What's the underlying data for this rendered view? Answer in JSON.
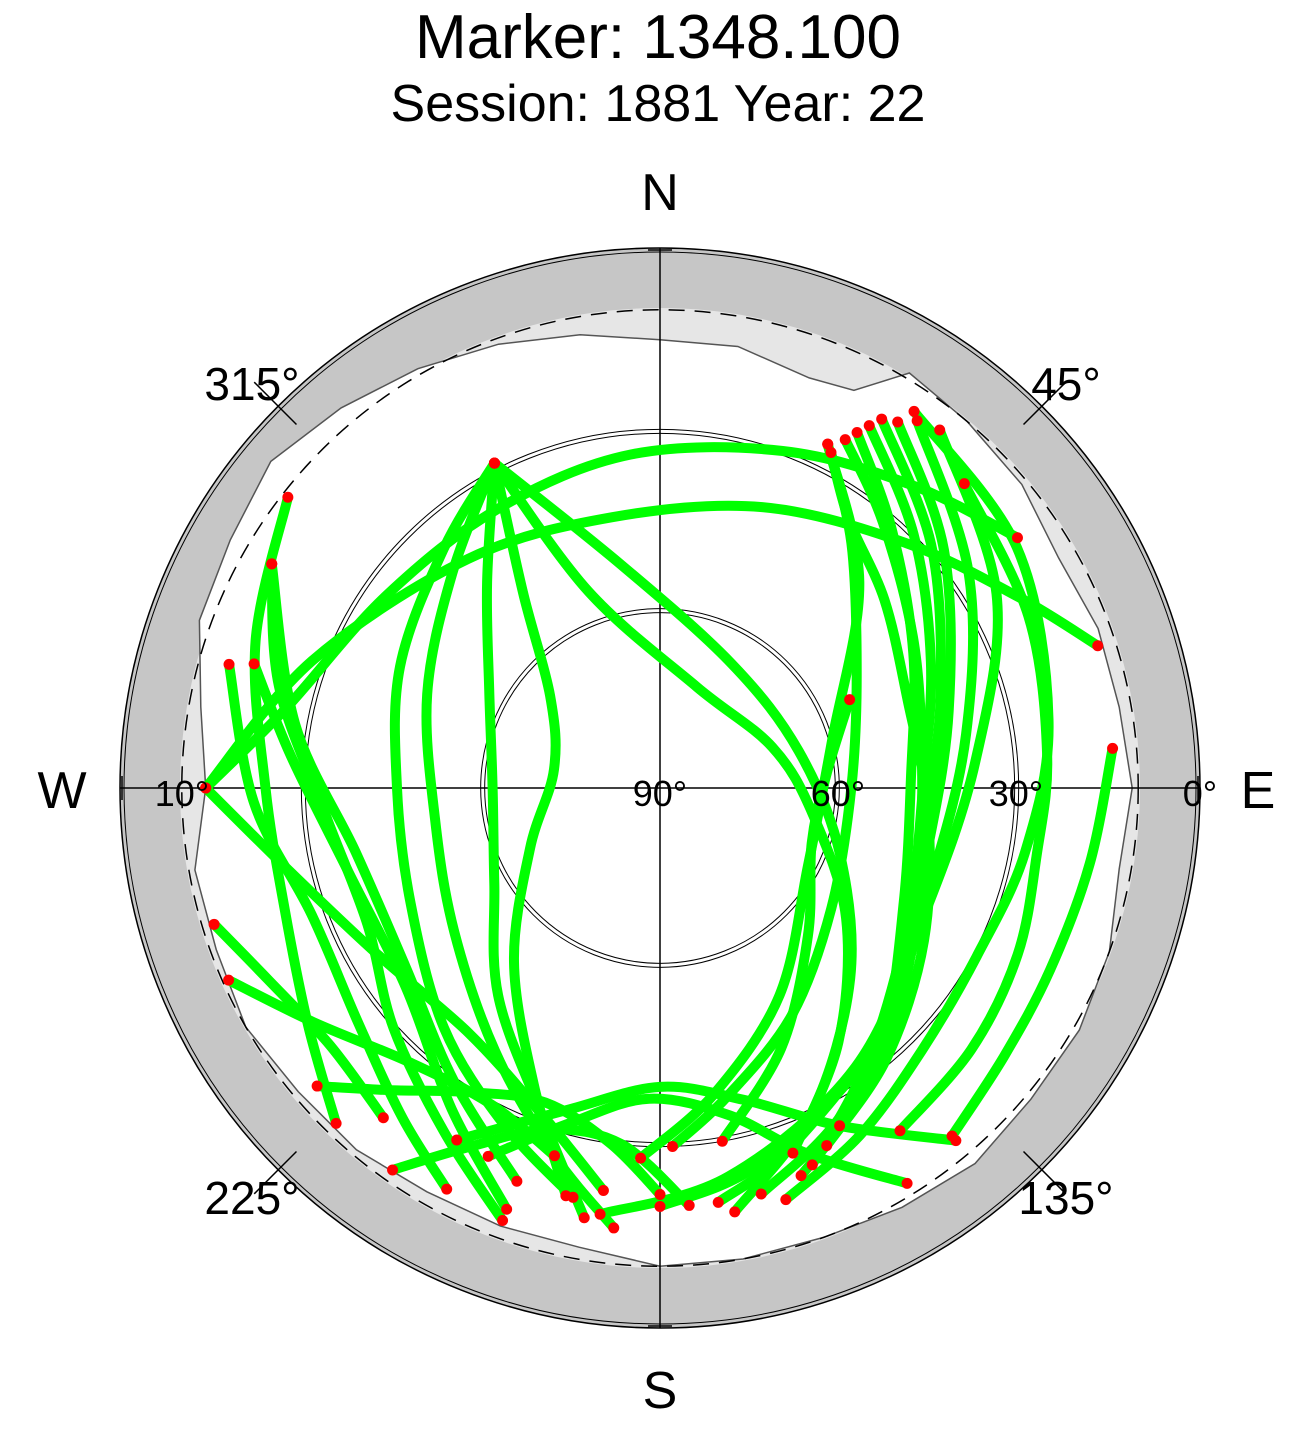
{
  "header": {
    "title": "Marker: 1348.100",
    "subtitle": "Session: 1881 Year: 22"
  },
  "colors": {
    "track": "#00ff00",
    "endpoint": "#ff0000",
    "outer_ring": "#c6c6c6",
    "mask_region": "#e6e6e6",
    "visible_region": "#ffffff"
  },
  "chart_data": {
    "type": "scatter",
    "projection": "polar skyplot (azimuth clockwise from North, elevation radial)",
    "labels": {
      "compass": {
        "N": "N",
        "E": "E",
        "S": "S",
        "W": "W"
      },
      "azimuth_ticks": [
        "45°",
        "135°",
        "225°",
        "315°"
      ],
      "elevation_ticks": [
        "90°",
        "60°",
        "30°",
        "0°",
        "10°"
      ]
    },
    "elevation_range": [
      0,
      90
    ],
    "elevation_mask_deg": 10,
    "elevation_rings_deg": [
      30,
      60
    ],
    "horizon_mask": [
      [
        0,
        15
      ],
      [
        10,
        15
      ],
      [
        20,
        17
      ],
      [
        26,
        16
      ],
      [
        31,
        9
      ],
      [
        40,
        10
      ],
      [
        50,
        11
      ],
      [
        60,
        13
      ],
      [
        70,
        12
      ],
      [
        80,
        12
      ],
      [
        90,
        11
      ],
      [
        100,
        12
      ],
      [
        110,
        10
      ],
      [
        120,
        9
      ],
      [
        130,
        9
      ],
      [
        140,
        8
      ],
      [
        150,
        9
      ],
      [
        160,
        10
      ],
      [
        170,
        10
      ],
      [
        180,
        10
      ],
      [
        190,
        12
      ],
      [
        200,
        12
      ],
      [
        210,
        12
      ],
      [
        220,
        11
      ],
      [
        230,
        11
      ],
      [
        240,
        10
      ],
      [
        250,
        11
      ],
      [
        260,
        11
      ],
      [
        270,
        14
      ],
      [
        280,
        12
      ],
      [
        290,
        8
      ],
      [
        300,
        7
      ],
      [
        310,
        5
      ],
      [
        320,
        7
      ],
      [
        330,
        9
      ],
      [
        340,
        11
      ],
      [
        350,
        13
      ],
      [
        360,
        15
      ]
    ],
    "series": [
      {
        "points": [
          [
            27,
            27
          ],
          [
            35,
            35
          ],
          [
            50,
            41
          ],
          [
            70,
            46
          ],
          [
            95,
            45
          ],
          [
            120,
            39
          ],
          [
            140,
            31
          ],
          [
            155,
            24
          ]
        ]
      },
      {
        "points": [
          [
            28,
            24
          ],
          [
            40,
            32
          ],
          [
            60,
            41
          ],
          [
            85,
            46
          ],
          [
            110,
            44
          ],
          [
            130,
            37
          ],
          [
            148,
            28
          ],
          [
            160,
            21
          ]
        ]
      },
      {
        "points": [
          [
            29,
            22
          ],
          [
            42,
            32
          ],
          [
            62,
            42
          ],
          [
            88,
            48
          ],
          [
            115,
            45
          ],
          [
            138,
            34
          ],
          [
            152,
            26
          ]
        ]
      },
      {
        "points": [
          [
            30,
            20
          ],
          [
            45,
            30
          ],
          [
            65,
            40
          ],
          [
            90,
            46
          ],
          [
            118,
            43
          ],
          [
            142,
            33
          ],
          [
            158,
            22
          ]
        ]
      },
      {
        "points": [
          [
            31,
            18
          ],
          [
            48,
            29
          ],
          [
            70,
            40
          ],
          [
            95,
            45
          ],
          [
            125,
            40
          ],
          [
            150,
            28
          ],
          [
            166,
            20
          ]
        ]
      },
      {
        "points": [
          [
            33,
            17
          ],
          [
            50,
            28
          ],
          [
            75,
            40
          ],
          [
            105,
            44
          ],
          [
            135,
            36
          ],
          [
            160,
            26
          ],
          [
            172,
            20
          ]
        ]
      },
      {
        "points": [
          [
            35,
            15
          ],
          [
            55,
            27
          ],
          [
            80,
            38
          ],
          [
            110,
            42
          ],
          [
            140,
            34
          ],
          [
            165,
            25
          ],
          [
            180,
            20
          ]
        ]
      },
      {
        "points": [
          [
            38,
            14
          ],
          [
            60,
            25
          ],
          [
            85,
            37
          ],
          [
            115,
            41
          ],
          [
            145,
            33
          ],
          [
            170,
            24
          ],
          [
            188,
            18
          ]
        ]
      },
      {
        "points": [
          [
            26,
            26
          ],
          [
            38,
            38
          ],
          [
            60,
            52
          ],
          [
            90,
            58
          ],
          [
            125,
            55
          ],
          [
            150,
            46
          ],
          [
            168,
            37
          ],
          [
            178,
            30
          ]
        ]
      },
      {
        "points": [
          [
            26,
            26
          ],
          [
            44,
            42
          ],
          [
            74,
            60
          ],
          [
            118,
            62
          ],
          [
            150,
            50
          ],
          [
            170,
            38
          ],
          [
            183,
            28
          ]
        ]
      },
      {
        "points": [
          [
            34,
            14
          ],
          [
            56,
            18
          ],
          [
            80,
            24
          ],
          [
            100,
            28
          ],
          [
            118,
            30
          ],
          [
            135,
            28
          ],
          [
            150,
            23
          ],
          [
            163,
            18
          ]
        ]
      },
      {
        "points": [
          [
            45,
            18
          ],
          [
            65,
            22
          ],
          [
            85,
            25
          ],
          [
            100,
            26
          ],
          [
            115,
            24
          ],
          [
            130,
            22
          ],
          [
            145,
            20
          ]
        ]
      },
      {
        "points": [
          [
            85,
            14
          ],
          [
            100,
            17
          ],
          [
            115,
            18
          ],
          [
            128,
            17
          ],
          [
            140,
            14
          ]
        ]
      },
      {
        "points": [
          [
            65,
            55
          ],
          [
            85,
            62
          ],
          [
            110,
            63
          ],
          [
            135,
            55
          ],
          [
            155,
            42
          ],
          [
            170,
            30
          ]
        ]
      },
      {
        "points": [
          [
            333,
            29
          ],
          [
            318,
            36
          ],
          [
            295,
            42
          ],
          [
            270,
            46
          ],
          [
            245,
            44
          ],
          [
            222,
            36
          ],
          [
            205,
            28
          ],
          [
            192,
            20
          ]
        ]
      },
      {
        "points": [
          [
            333,
            29
          ],
          [
            316,
            40
          ],
          [
            292,
            48
          ],
          [
            262,
            52
          ],
          [
            235,
            48
          ],
          [
            212,
            38
          ],
          [
            196,
            26
          ],
          [
            186,
            16
          ]
        ]
      },
      {
        "points": [
          [
            333,
            29
          ],
          [
            320,
            45
          ],
          [
            300,
            57
          ],
          [
            270,
            62
          ],
          [
            240,
            58
          ],
          [
            218,
            46
          ],
          [
            200,
            32
          ],
          [
            190,
            17
          ]
        ]
      },
      {
        "points": [
          [
            333,
            29
          ],
          [
            325,
            50
          ],
          [
            310,
            66
          ],
          [
            280,
            72
          ],
          [
            245,
            66
          ],
          [
            220,
            52
          ],
          [
            203,
            36
          ],
          [
            193,
            20
          ]
        ]
      },
      {
        "points": [
          [
            333,
            29
          ],
          [
            340,
            55
          ],
          [
            20,
            72
          ],
          [
            70,
            70
          ],
          [
            100,
            64
          ],
          [
            125,
            52
          ],
          [
            145,
            38
          ],
          [
            160,
            25
          ]
        ]
      },
      {
        "points": [
          [
            333,
            29
          ],
          [
            350,
            52
          ],
          [
            30,
            66
          ],
          [
            75,
            66
          ],
          [
            110,
            58
          ],
          [
            135,
            45
          ],
          [
            155,
            30
          ],
          [
            170,
            18
          ]
        ]
      },
      {
        "points": [
          [
            300,
            15
          ],
          [
            285,
            24
          ],
          [
            265,
            34
          ],
          [
            245,
            36
          ],
          [
            228,
            30
          ],
          [
            212,
            22
          ],
          [
            200,
            13
          ]
        ]
      },
      {
        "points": [
          [
            300,
            15
          ],
          [
            280,
            28
          ],
          [
            258,
            38
          ],
          [
            235,
            38
          ],
          [
            215,
            30
          ],
          [
            200,
            20
          ]
        ]
      },
      {
        "points": [
          [
            287,
            19
          ],
          [
            275,
            28
          ],
          [
            255,
            36
          ],
          [
            232,
            36
          ],
          [
            213,
            26
          ],
          [
            200,
            15
          ]
        ]
      },
      {
        "points": [
          [
            286,
            15
          ],
          [
            268,
            22
          ],
          [
            250,
            28
          ],
          [
            232,
            26
          ],
          [
            218,
            20
          ],
          [
            208,
            14
          ]
        ]
      },
      {
        "points": [
          [
            308,
            11
          ],
          [
            290,
            18
          ],
          [
            270,
            24
          ],
          [
            252,
            24
          ],
          [
            236,
            19
          ],
          [
            224,
            12
          ]
        ]
      },
      {
        "points": [
          [
            246,
            11
          ],
          [
            236,
            20
          ],
          [
            222,
            28
          ],
          [
            208,
            30
          ],
          [
            196,
            26
          ]
        ]
      },
      {
        "points": [
          [
            253,
            12
          ],
          [
            244,
            17
          ],
          [
            232,
            20
          ],
          [
            220,
            18
          ]
        ]
      },
      {
        "points": [
          [
            270,
            14
          ],
          [
            258,
            26
          ],
          [
            240,
            35
          ],
          [
            218,
            38
          ],
          [
            200,
            32
          ],
          [
            188,
            22
          ]
        ]
      },
      {
        "points": [
          [
            270,
            14
          ],
          [
            282,
            26
          ],
          [
            305,
            34
          ],
          [
            330,
            36
          ],
          [
            355,
            34
          ],
          [
            20,
            30
          ],
          [
            40,
            24
          ],
          [
            55,
            17
          ]
        ]
      },
      {
        "points": [
          [
            270,
            14
          ],
          [
            290,
            28
          ],
          [
            320,
            40
          ],
          [
            350,
            44
          ],
          [
            20,
            40
          ],
          [
            45,
            32
          ],
          [
            62,
            22
          ],
          [
            72,
            13
          ]
        ]
      },
      {
        "points": [
          [
            229,
            14
          ],
          [
            222,
            22
          ],
          [
            212,
            30
          ],
          [
            200,
            34
          ],
          [
            188,
            30
          ],
          [
            180,
            22
          ]
        ]
      },
      {
        "points": [
          [
            215,
            12
          ],
          [
            208,
            22
          ],
          [
            198,
            30
          ],
          [
            186,
            30
          ],
          [
            176,
            20
          ]
        ]
      },
      {
        "points": [
          [
            148,
            12
          ],
          [
            158,
            24
          ],
          [
            168,
            34
          ],
          [
            182,
            38
          ],
          [
            195,
            32
          ],
          [
            205,
            22
          ]
        ]
      },
      {
        "points": [
          [
            140,
            13
          ],
          [
            152,
            26
          ],
          [
            165,
            36
          ],
          [
            180,
            40
          ],
          [
            196,
            34
          ],
          [
            210,
            22
          ]
        ]
      }
    ]
  }
}
